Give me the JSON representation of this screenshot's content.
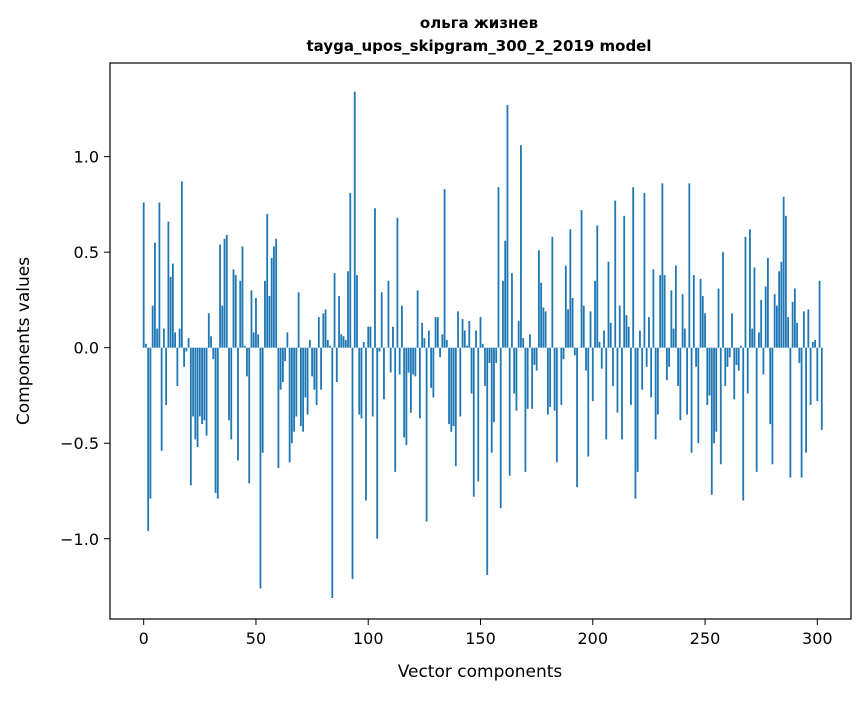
{
  "chart_data": {
    "type": "bar",
    "title": "ольга жизнев",
    "subtitle": "tayga_upos_skipgram_300_2_2019 model",
    "xlabel": "Vector components",
    "ylabel": "Components values",
    "xlim": [
      -15,
      315
    ],
    "ylim": [
      -1.42,
      1.49
    ],
    "xticks": [
      0,
      50,
      100,
      150,
      200,
      250,
      300
    ],
    "xtick_labels": [
      "0",
      "50",
      "100",
      "150",
      "200",
      "250",
      "300"
    ],
    "yticks": [
      -1.0,
      -0.5,
      0.0,
      0.5,
      1.0
    ],
    "ytick_labels": [
      "−1.0",
      "−0.5",
      "0.0",
      "0.5",
      "1.0"
    ],
    "grid": false,
    "bar_color": "#1f77b4",
    "values": [
      0.76,
      0.02,
      -0.96,
      -0.79,
      0.22,
      0.55,
      0.1,
      0.76,
      -0.54,
      0.1,
      -0.3,
      0.66,
      0.37,
      0.44,
      0.08,
      -0.2,
      0.1,
      0.87,
      -0.1,
      -0.02,
      0.05,
      -0.72,
      -0.36,
      -0.48,
      -0.52,
      -0.36,
      -0.4,
      -0.38,
      -0.46,
      0.18,
      0.06,
      -0.06,
      -0.76,
      -0.79,
      0.54,
      0.22,
      0.57,
      0.59,
      -0.38,
      -0.48,
      0.41,
      0.38,
      -0.59,
      0.35,
      0.53,
      0.01,
      -0.15,
      -0.71,
      0.3,
      0.08,
      0.26,
      0.07,
      -1.26,
      -0.55,
      0.35,
      0.7,
      0.27,
      0.47,
      0.53,
      0.57,
      -0.63,
      -0.22,
      -0.18,
      -0.07,
      0.08,
      -0.6,
      -0.5,
      -0.44,
      -0.36,
      0.29,
      -0.41,
      -0.44,
      -0.26,
      -0.35,
      0.04,
      -0.15,
      -0.22,
      -0.3,
      0.16,
      -0.22,
      0.18,
      0.2,
      0.04,
      0.01,
      -1.31,
      0.39,
      -0.18,
      0.27,
      0.07,
      0.06,
      0.04,
      0.4,
      0.81,
      -1.21,
      1.34,
      0.38,
      -0.35,
      -0.37,
      0.03,
      -0.8,
      0.11,
      0.11,
      -0.36,
      0.73,
      -1.0,
      -0.02,
      0.29,
      -0.27,
      0.0,
      0.35,
      -0.13,
      0.11,
      -0.65,
      0.68,
      -0.14,
      0.22,
      -0.47,
      -0.51,
      -0.13,
      -0.34,
      -0.14,
      -0.15,
      0.3,
      -0.37,
      0.13,
      0.05,
      -0.91,
      0.09,
      -0.21,
      -0.26,
      0.16,
      0.16,
      -0.05,
      0.07,
      0.83,
      0.04,
      -0.4,
      -0.44,
      -0.41,
      -0.62,
      0.19,
      -0.36,
      0.15,
      0.09,
      0.01,
      0.14,
      -0.24,
      -0.78,
      0.09,
      -0.7,
      0.16,
      0.02,
      -0.2,
      -1.19,
      -0.08,
      -0.55,
      -0.39,
      -0.08,
      0.84,
      -0.84,
      0.35,
      0.56,
      1.27,
      -0.67,
      0.39,
      -0.24,
      -0.33,
      0.14,
      1.06,
      0.05,
      -0.65,
      -0.32,
      0.07,
      -0.32,
      -0.09,
      -0.12,
      0.51,
      0.34,
      0.21,
      0.19,
      -0.35,
      -0.31,
      0.58,
      -0.33,
      -0.6,
      0.0,
      -0.3,
      -0.06,
      0.43,
      0.2,
      0.62,
      0.26,
      -0.04,
      -0.73,
      0.0,
      0.72,
      0.22,
      -0.12,
      -0.57,
      0.19,
      -0.28,
      0.35,
      0.64,
      0.03,
      -0.11,
      0.09,
      -0.48,
      0.45,
      0.13,
      -0.2,
      0.77,
      -0.34,
      0.22,
      -0.48,
      0.69,
      0.17,
      0.11,
      -0.3,
      0.84,
      -0.79,
      -0.65,
      0.09,
      -0.22,
      0.81,
      -0.1,
      0.16,
      -0.26,
      0.41,
      -0.48,
      -0.35,
      0.38,
      0.86,
      0.38,
      -0.17,
      -0.1,
      0.3,
      0.1,
      0.43,
      -0.2,
      -0.38,
      0.28,
      0.1,
      -0.35,
      0.86,
      -0.55,
      0.38,
      -0.1,
      -0.5,
      0.36,
      0.27,
      0.18,
      -0.3,
      -0.25,
      -0.77,
      -0.5,
      -0.44,
      0.31,
      -0.61,
      0.5,
      -0.2,
      -0.1,
      -0.05,
      0.18,
      -0.27,
      -0.09,
      -0.12,
      0.01,
      -0.8,
      0.58,
      -0.24,
      0.62,
      0.1,
      0.42,
      -0.65,
      0.08,
      0.25,
      -0.14,
      0.32,
      0.47,
      -0.4,
      -0.61,
      0.28,
      0.22,
      0.4,
      0.45,
      0.79,
      0.69,
      0.16,
      -0.68,
      0.24,
      0.31,
      0.13,
      -0.08,
      -0.68,
      0.19,
      -0.55,
      0.2,
      -0.3,
      0.03,
      0.04,
      -0.28,
      0.35,
      -0.43
    ]
  }
}
